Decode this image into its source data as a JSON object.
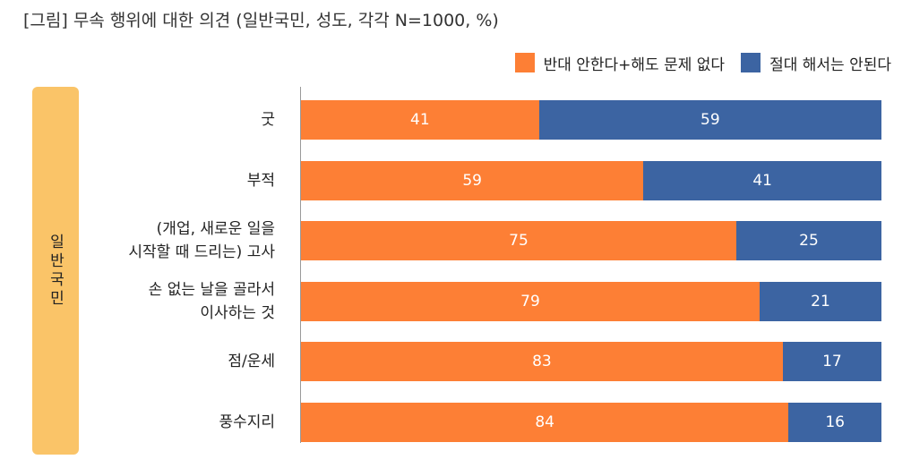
{
  "title": "[그림] 무속 행위에 대한 의견 (일반국민, 성도, 각각 N=1000, %)",
  "colors": {
    "series1": "#FD7F35",
    "series2": "#3C64A2",
    "group_panel": "#FAC468"
  },
  "chart_data": {
    "type": "bar",
    "orientation": "horizontal",
    "stacked": true,
    "title": "[그림] 무속 행위에 대한 의견 (일반국민, 성도, 각각 N=1000, %)",
    "group": "일반국민",
    "categories": [
      [
        "굿"
      ],
      [
        "부적"
      ],
      [
        "(개업, 새로운 일을",
        "시작할 때 드리는) 고사"
      ],
      [
        "손 없는 날을 골라서",
        "이사하는 것"
      ],
      [
        "점/운세"
      ],
      [
        "풍수지리"
      ]
    ],
    "series": [
      {
        "name": "반대 안한다+해도 문제 없다",
        "values": [
          41,
          59,
          75,
          79,
          83,
          84
        ]
      },
      {
        "name": "절대 해서는 안된다",
        "values": [
          59,
          41,
          25,
          21,
          17,
          16
        ]
      }
    ],
    "xlim": [
      0,
      100
    ],
    "legend": "top-right",
    "grid": false
  }
}
